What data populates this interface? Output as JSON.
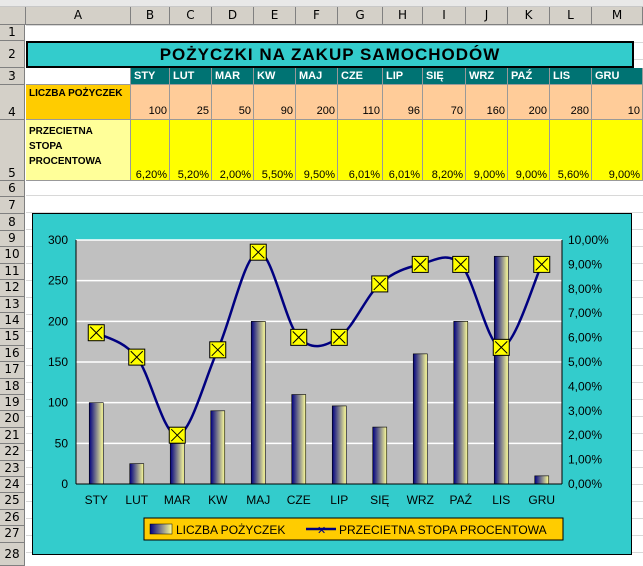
{
  "columns": [
    "A",
    "B",
    "C",
    "D",
    "E",
    "F",
    "G",
    "H",
    "I",
    "J",
    "K",
    "L",
    "M"
  ],
  "rows": [
    "1",
    "2",
    "3",
    "4",
    "5",
    "6",
    "7",
    "8",
    "9",
    "10",
    "11",
    "12",
    "13",
    "14",
    "15",
    "16",
    "17",
    "18",
    "19",
    "20",
    "21",
    "22",
    "23",
    "24",
    "25",
    "26",
    "27",
    "28"
  ],
  "table": {
    "title": "POŻYCZKI NA ZAKUP SAMOCHODÓW",
    "months": [
      "STY",
      "LUT",
      "MAR",
      "KW",
      "MAJ",
      "CZE",
      "LIP",
      "SIĘ",
      "WRZ",
      "PAŹ",
      "LIS",
      "GRU"
    ],
    "row4_label": "LICZBA POŻYCZEK",
    "row4_values": [
      "100",
      "25",
      "50",
      "90",
      "200",
      "110",
      "96",
      "70",
      "160",
      "200",
      "280",
      "10"
    ],
    "row5_label": "PRZECIETNA STOPA PROCENTOWA",
    "row5_values": [
      "6,20%",
      "5,20%",
      "2,00%",
      "5,50%",
      "9,50%",
      "6,01%",
      "6,01%",
      "8,20%",
      "9,00%",
      "9,00%",
      "5,60%",
      "9,00%"
    ]
  },
  "chart_data": {
    "type": "bar+line",
    "categories": [
      "STY",
      "LUT",
      "MAR",
      "KW",
      "MAJ",
      "CZE",
      "LIP",
      "SIĘ",
      "WRZ",
      "PAŹ",
      "LIS",
      "GRU"
    ],
    "series": [
      {
        "name": "LICZBA POŻYCZEK",
        "type": "bar",
        "axis": "left",
        "values": [
          100,
          25,
          50,
          90,
          200,
          110,
          96,
          70,
          160,
          200,
          280,
          10
        ]
      },
      {
        "name": "PRZECIETNA STOPA PROCENTOWA",
        "type": "line",
        "axis": "right",
        "values": [
          6.2,
          5.2,
          2.0,
          5.5,
          9.5,
          6.01,
          6.01,
          8.2,
          9.0,
          9.0,
          5.6,
          9.0
        ]
      }
    ],
    "y_left": {
      "min": 0,
      "max": 300,
      "ticks": [
        "0",
        "50",
        "100",
        "150",
        "200",
        "250",
        "300"
      ]
    },
    "y_right": {
      "min": 0,
      "max": 10,
      "ticks": [
        "0,00%",
        "1,00%",
        "2,00%",
        "3,00%",
        "4,00%",
        "5,00%",
        "6,00%",
        "7,00%",
        "8,00%",
        "9,00%",
        "10,00%"
      ]
    },
    "legend_position": "bottom",
    "colors": {
      "plot_bg": "#c0c0c0",
      "chart_bg": "#33cccc",
      "line": "#000080",
      "marker": "#ffff00",
      "bar_dark": "#000080",
      "bar_light": "#ffff99",
      "legend_bg": "#ffcc00"
    }
  }
}
